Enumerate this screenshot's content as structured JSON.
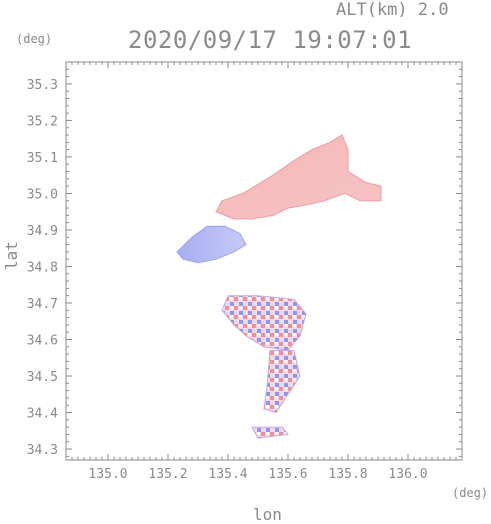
{
  "header": {
    "altitude_label": "ALT(km) 2.0",
    "timestamp": "2020/09/17 19:07:01"
  },
  "axes": {
    "y_unit": "(deg)",
    "x_unit": "(deg)",
    "ylabel": "lat",
    "xlabel": "lon"
  },
  "chart_data": {
    "type": "heatmap",
    "title": "2020/09/17 19:07:01",
    "subtitle": "ALT(km) 2.0",
    "xlabel": "lon",
    "ylabel": "lat",
    "x_unit": "deg",
    "y_unit": "deg",
    "xlim": [
      134.86,
      136.18
    ],
    "ylim": [
      34.27,
      35.36
    ],
    "x_ticks": [
      "135.0",
      "135.2",
      "135.4",
      "135.6",
      "135.8",
      "136.0"
    ],
    "y_ticks": [
      "34.3",
      "34.4",
      "34.5",
      "34.6",
      "34.7",
      "34.8",
      "34.9",
      "35.0",
      "35.1",
      "35.2",
      "35.3"
    ],
    "grid": false,
    "colors": {
      "positive": "#f4a3a3",
      "negative": "#a9aef2",
      "axis": "#8a8a8a"
    },
    "regions": [
      {
        "name": "north-east",
        "sign": "positive",
        "polygon": [
          [
            135.38,
            34.98
          ],
          [
            135.45,
            35.0
          ],
          [
            135.55,
            35.05
          ],
          [
            135.62,
            35.09
          ],
          [
            135.68,
            35.12
          ],
          [
            135.74,
            35.14
          ],
          [
            135.78,
            35.16
          ],
          [
            135.8,
            35.12
          ],
          [
            135.8,
            35.06
          ],
          [
            135.86,
            35.03
          ],
          [
            135.91,
            35.02
          ],
          [
            135.91,
            34.98
          ],
          [
            135.84,
            34.98
          ],
          [
            135.79,
            35.0
          ],
          [
            135.72,
            34.98
          ],
          [
            135.67,
            34.97
          ],
          [
            135.6,
            34.96
          ],
          [
            135.55,
            34.94
          ],
          [
            135.48,
            34.93
          ],
          [
            135.42,
            34.93
          ],
          [
            135.36,
            34.95
          ]
        ]
      },
      {
        "name": "north-west",
        "sign": "negative",
        "polygon": [
          [
            135.23,
            34.84
          ],
          [
            135.28,
            34.88
          ],
          [
            135.33,
            34.91
          ],
          [
            135.39,
            34.91
          ],
          [
            135.44,
            34.89
          ],
          [
            135.46,
            34.86
          ],
          [
            135.42,
            34.84
          ],
          [
            135.36,
            34.82
          ],
          [
            135.3,
            34.81
          ],
          [
            135.25,
            34.82
          ]
        ]
      },
      {
        "name": "south-mixed-upper",
        "sign": "mixed",
        "polygon": [
          [
            135.4,
            34.72
          ],
          [
            135.5,
            34.72
          ],
          [
            135.62,
            34.71
          ],
          [
            135.66,
            34.67
          ],
          [
            135.64,
            34.61
          ],
          [
            135.6,
            34.57
          ],
          [
            135.52,
            34.58
          ],
          [
            135.46,
            34.61
          ],
          [
            135.42,
            34.64
          ],
          [
            135.38,
            34.68
          ]
        ]
      },
      {
        "name": "south-mixed-lower",
        "sign": "mixed",
        "polygon": [
          [
            135.54,
            34.57
          ],
          [
            135.62,
            34.57
          ],
          [
            135.64,
            34.5
          ],
          [
            135.6,
            34.45
          ],
          [
            135.56,
            34.4
          ],
          [
            135.52,
            34.41
          ],
          [
            135.53,
            34.47
          ]
        ]
      },
      {
        "name": "south-tail",
        "sign": "mixed",
        "polygon": [
          [
            135.48,
            34.36
          ],
          [
            135.58,
            34.36
          ],
          [
            135.6,
            34.34
          ],
          [
            135.5,
            34.33
          ]
        ]
      }
    ]
  }
}
